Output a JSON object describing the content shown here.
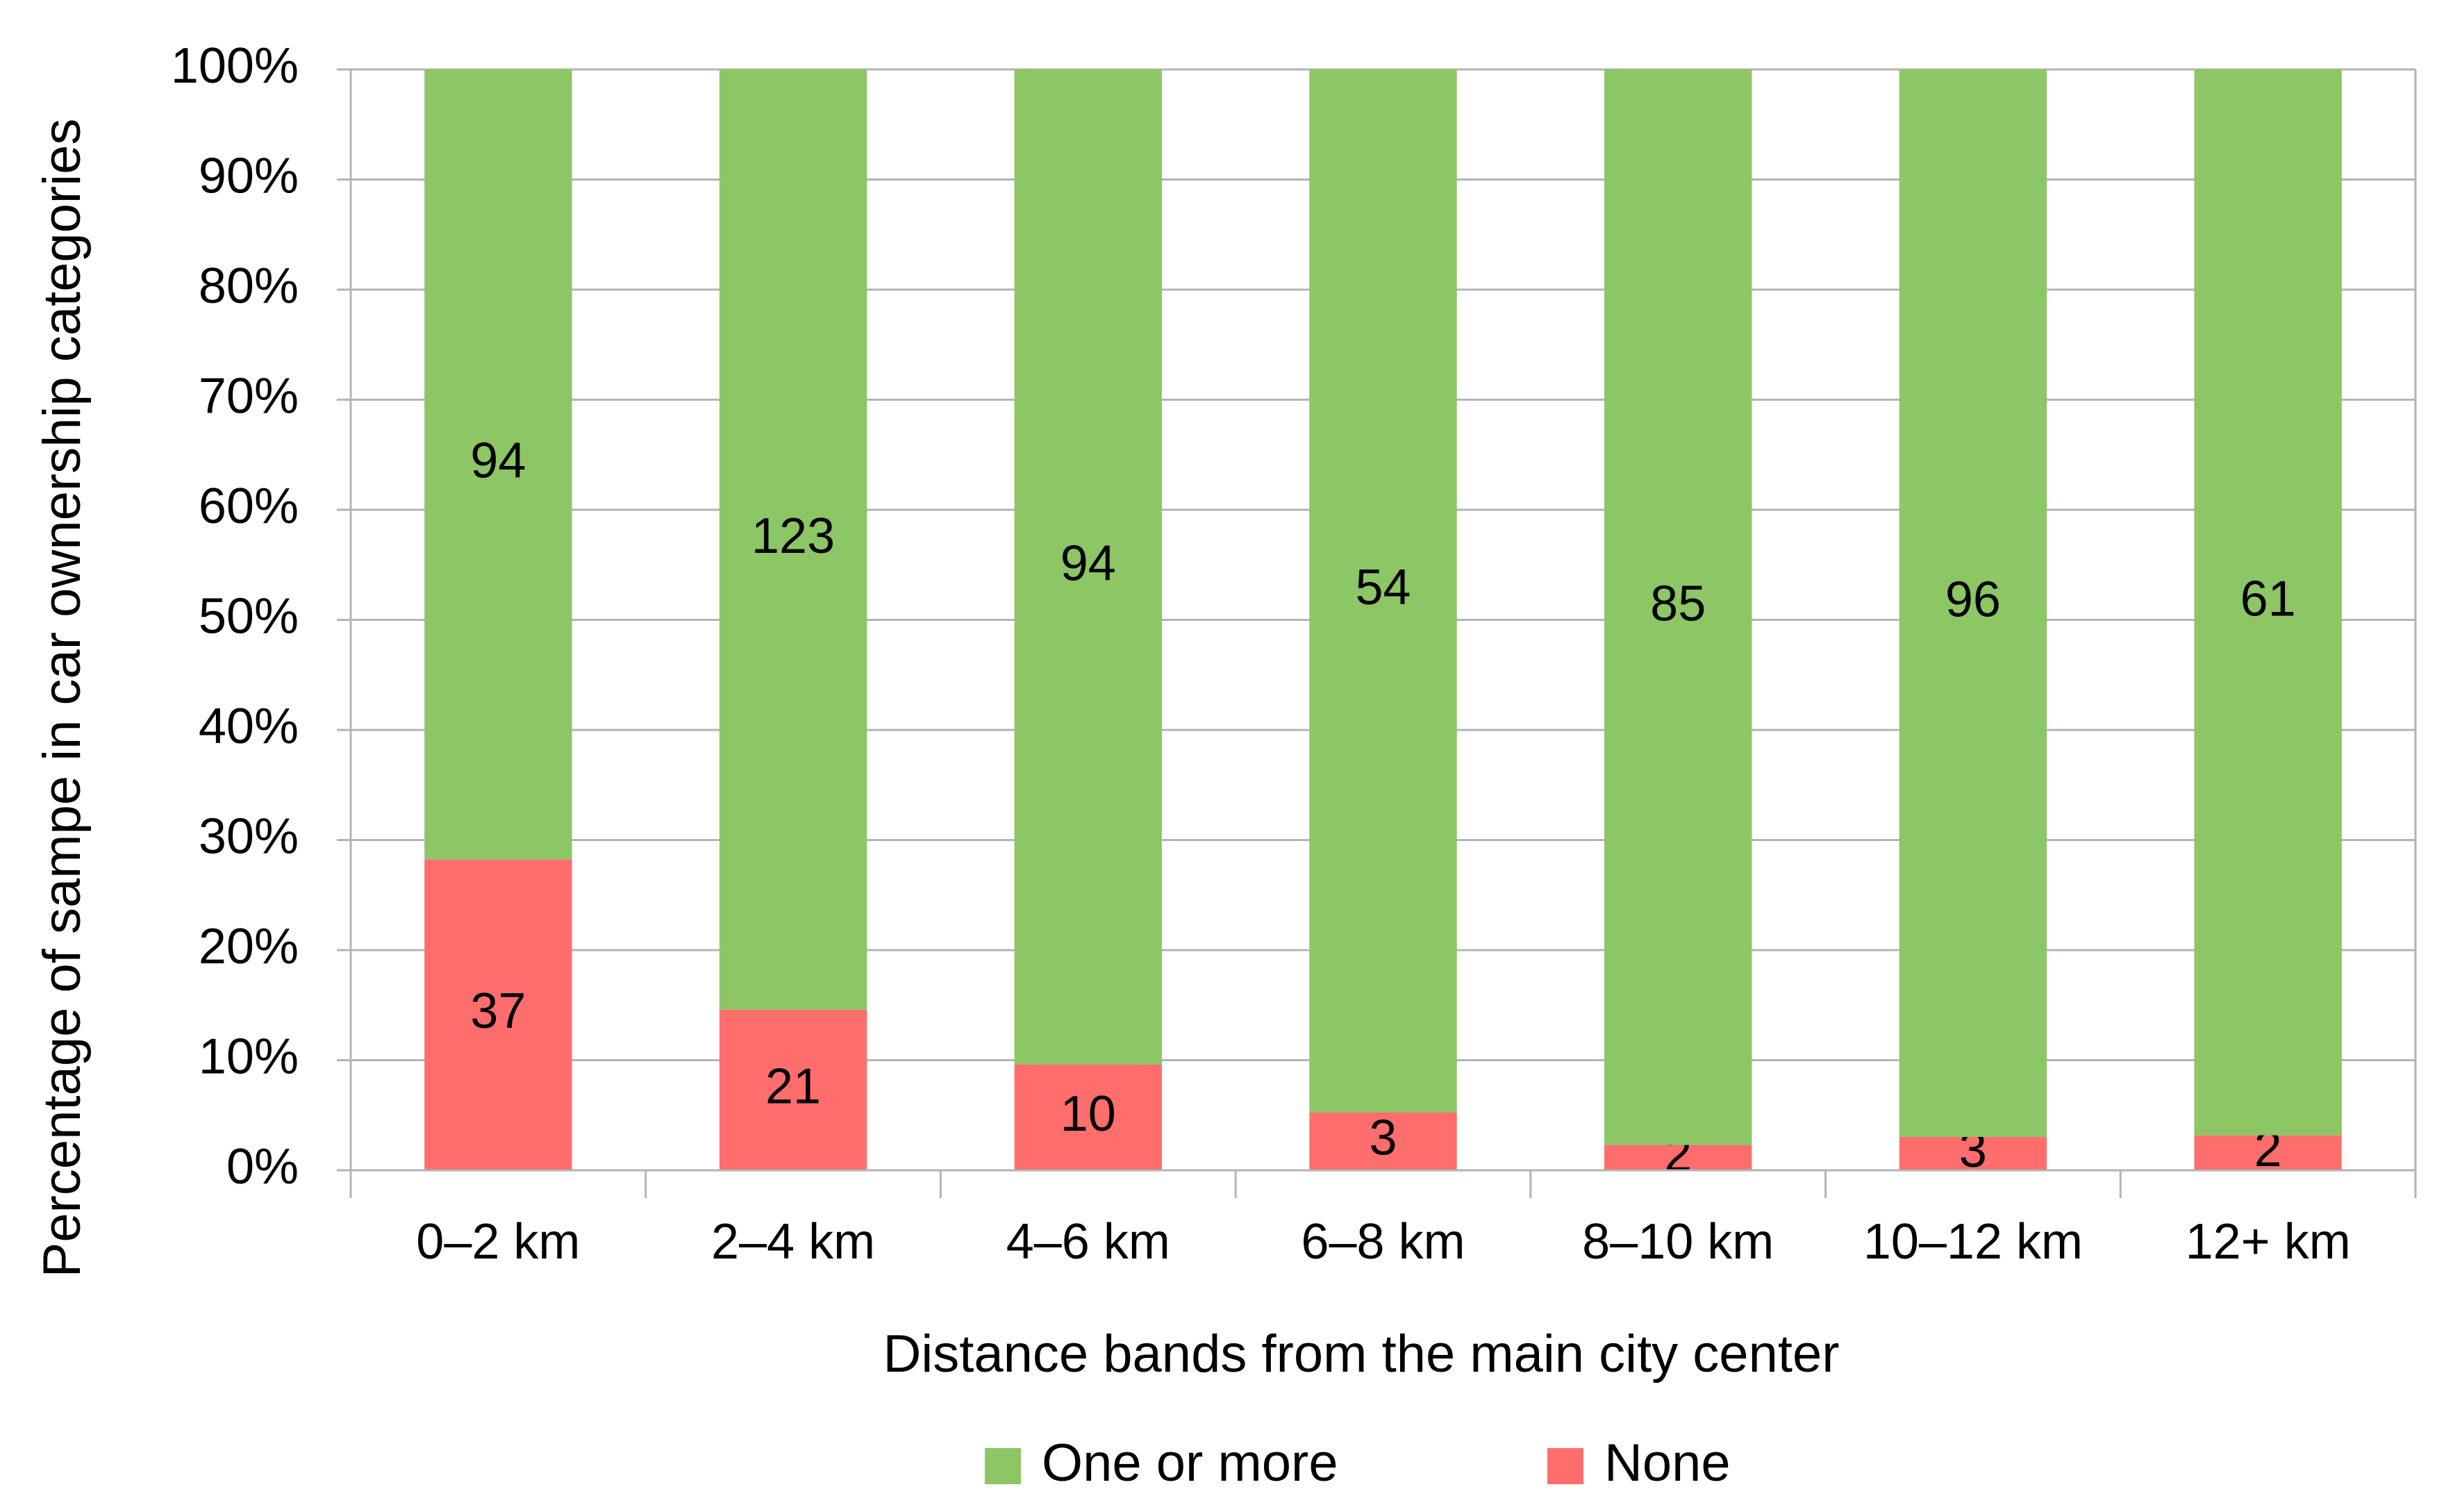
{
  "chart_data": {
    "type": "bar",
    "stacked": "percent",
    "categories": [
      "0–2 km",
      "2–4 km",
      "4–6 km",
      "6–8 km",
      "8–10 km",
      "10–12 km",
      "12+ km"
    ],
    "series": [
      {
        "name": "None",
        "values": [
          37,
          21,
          10,
          3,
          2,
          3,
          2
        ],
        "color": "#ff6d6d"
      },
      {
        "name": "One or more",
        "values": [
          94,
          123,
          94,
          54,
          85,
          96,
          61
        ],
        "color": "#8cc665"
      }
    ],
    "xlabel": "Distance bands from the main city center",
    "ylabel": "Percentage of sampe in car ownership categories",
    "ylim": [
      0,
      100
    ],
    "yticks": [
      "0%",
      "10%",
      "20%",
      "30%",
      "40%",
      "50%",
      "60%",
      "70%",
      "80%",
      "90%",
      "100%"
    ],
    "legend_order": [
      "One or more",
      "None"
    ],
    "legend_position": "bottom",
    "grid": true
  }
}
